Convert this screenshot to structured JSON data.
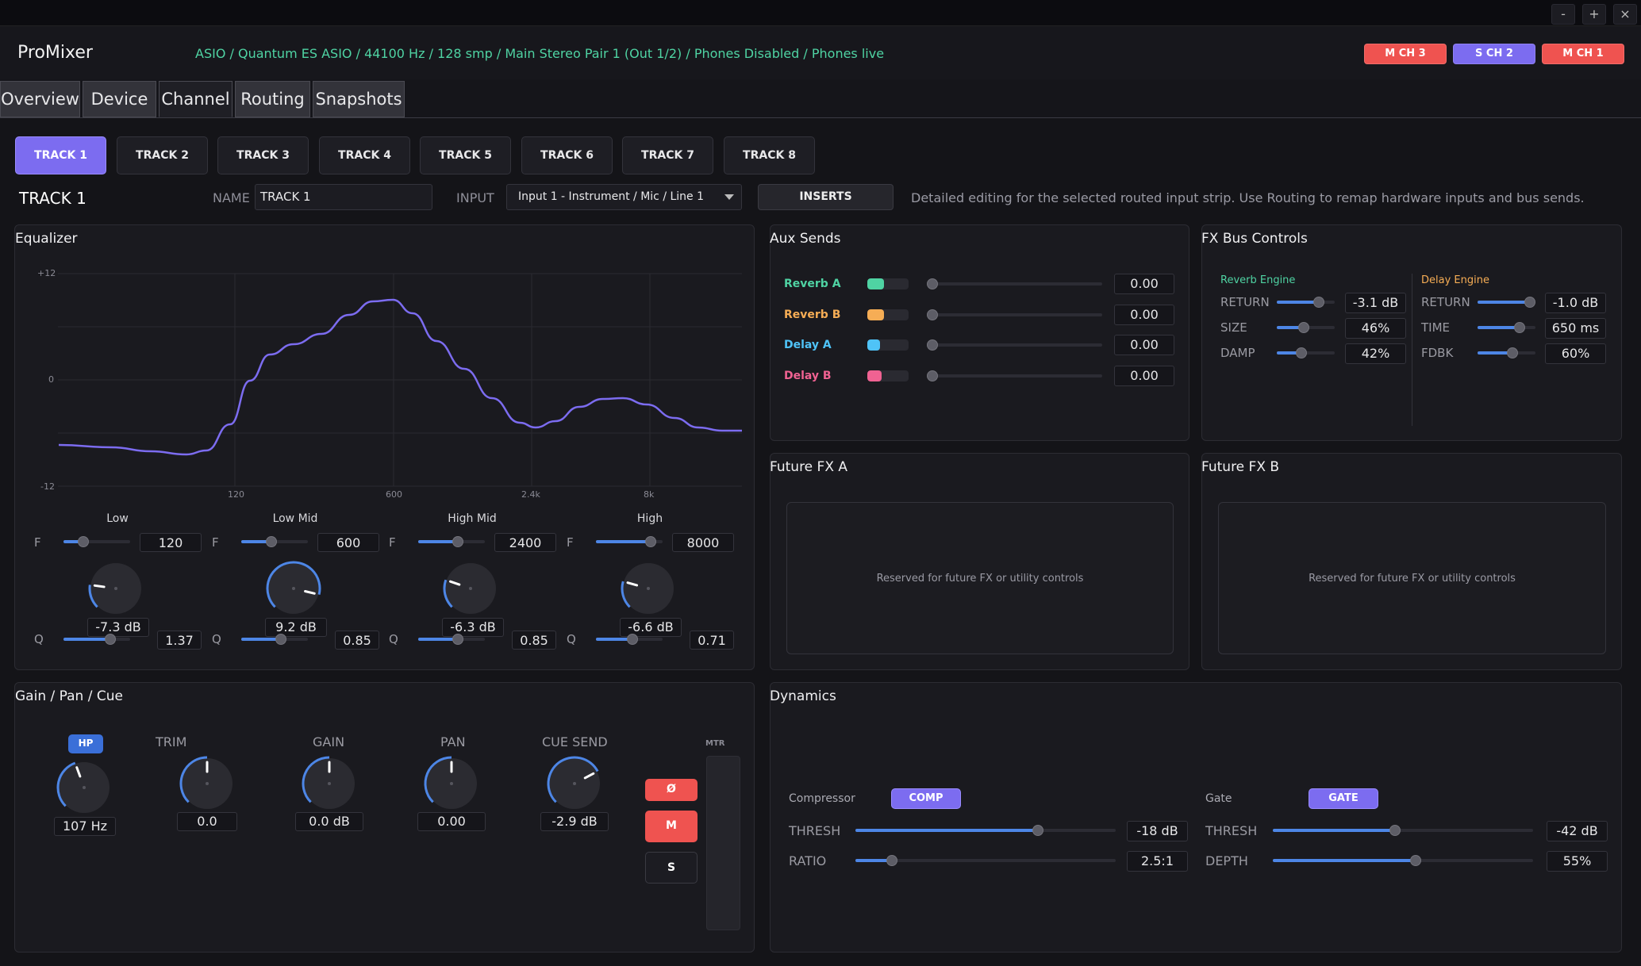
{
  "window": {
    "min": "-",
    "max": "+",
    "close": "×"
  },
  "header": {
    "app_title": "ProMixer",
    "status": "ASIO / Quantum ES ASIO / 44100 Hz / 128 smp / Main Stereo Pair 1 (Out 1/2) / Phones Disabled / Phones live",
    "chips": [
      {
        "label": "M CH 3",
        "color": "#ef5350"
      },
      {
        "label": "S CH 2",
        "color": "#7c6cf0"
      },
      {
        "label": "M CH 1",
        "color": "#ef5350"
      }
    ]
  },
  "tabs": [
    {
      "label": "Overview",
      "active": false
    },
    {
      "label": "Device",
      "active": false
    },
    {
      "label": "Channel",
      "active": true
    },
    {
      "label": "Routing",
      "active": false
    },
    {
      "label": "Snapshots",
      "active": false
    }
  ],
  "tracks": [
    "TRACK 1",
    "TRACK 2",
    "TRACK 3",
    "TRACK 4",
    "TRACK 5",
    "TRACK 6",
    "TRACK 7",
    "TRACK 8"
  ],
  "selected_track": "TRACK 1",
  "channel": {
    "name_label": "NAME",
    "name_value": "TRACK 1",
    "input_label": "INPUT",
    "input_value": "Input 1 - Instrument / Mic / Line 1",
    "inserts_label": "INSERTS",
    "help": "Detailed editing for the selected routed input strip. Use Routing to remap hardware inputs and bus sends."
  },
  "equalizer": {
    "title": "Equalizer",
    "y_labels": [
      "+12",
      "0",
      "-12"
    ],
    "x_labels": [
      "120",
      "600",
      "2.4k",
      "8k"
    ],
    "curve_color": "#7c6cf0",
    "bands": [
      {
        "name": "Low",
        "f_label": "F",
        "freq": "120",
        "freq_pos": 0.3,
        "gain": "-7.3 dB",
        "gain_value": -7.3,
        "q_label": "Q",
        "q": "1.37",
        "q_pos": 0.7
      },
      {
        "name": "Low Mid",
        "f_label": "F",
        "freq": "600",
        "freq_pos": 0.45,
        "gain": "9.2 dB",
        "gain_value": 9.2,
        "q_label": "Q",
        "q": "0.85",
        "q_pos": 0.6
      },
      {
        "name": "High Mid",
        "f_label": "F",
        "freq": "2400",
        "freq_pos": 0.6,
        "gain": "-6.3 dB",
        "gain_value": -6.3,
        "q_label": "Q",
        "q": "0.85",
        "q_pos": 0.6
      },
      {
        "name": "High",
        "f_label": "F",
        "freq": "8000",
        "freq_pos": 0.82,
        "gain": "-6.6 dB",
        "gain_value": -6.6,
        "q_label": "Q",
        "q": "0.71",
        "q_pos": 0.55
      }
    ]
  },
  "aux_sends": {
    "title": "Aux Sends",
    "sends": [
      {
        "name": "Reverb A",
        "color": "#4fd3a3",
        "value": "0.00",
        "meter": 0.4
      },
      {
        "name": "Reverb B",
        "color": "#f6ad55",
        "value": "0.00",
        "meter": 0.4
      },
      {
        "name": "Delay A",
        "color": "#4fc3f7",
        "value": "0.00",
        "meter": 0.3
      },
      {
        "name": "Delay B",
        "color": "#f06292",
        "value": "0.00",
        "meter": 0.35
      }
    ]
  },
  "fx_bus": {
    "title": "FX Bus Controls",
    "reverb": {
      "title": "Reverb Engine",
      "color": "#4fd3a3",
      "params": [
        {
          "label": "RETURN",
          "value": "-3.1 dB",
          "pos": 0.72
        },
        {
          "label": "SIZE",
          "value": "46%",
          "pos": 0.46
        },
        {
          "label": "DAMP",
          "value": "42%",
          "pos": 0.42
        }
      ]
    },
    "delay": {
      "title": "Delay Engine",
      "color": "#f6ad55",
      "params": [
        {
          "label": "RETURN",
          "value": "-1.0 dB",
          "pos": 0.9
        },
        {
          "label": "TIME",
          "value": "650 ms",
          "pos": 0.72
        },
        {
          "label": "FDBK",
          "value": "60%",
          "pos": 0.6
        }
      ]
    }
  },
  "future_fx_a": {
    "title": "Future FX A",
    "text": "Reserved for future FX or utility controls"
  },
  "future_fx_b": {
    "title": "Future FX B",
    "text": "Reserved for future FX or utility controls"
  },
  "gain_pan": {
    "title": "Gain / Pan / Cue",
    "hp_label": "HP",
    "hp_value": "107 Hz",
    "trim_label": "TRIM",
    "trim_value": "0.0",
    "gain_label": "GAIN",
    "gain_value": "0.0 dB",
    "pan_label": "PAN",
    "pan_value": "0.00",
    "cue_label": "CUE SEND",
    "cue_value": "-2.9 dB",
    "phase_label": "Ø",
    "mute_label": "M",
    "solo_label": "S",
    "meter_label": "MTR"
  },
  "dynamics": {
    "title": "Dynamics",
    "compressor": {
      "label": "Compressor",
      "button": "COMP",
      "params": [
        {
          "label": "THRESH",
          "value": "-18 dB",
          "pos": 0.7
        },
        {
          "label": "RATIO",
          "value": "2.5:1",
          "pos": 0.14
        }
      ]
    },
    "gate": {
      "label": "Gate",
      "button": "GATE",
      "params": [
        {
          "label": "THRESH",
          "value": "-42 dB",
          "pos": 0.47
        },
        {
          "label": "DEPTH",
          "value": "55%",
          "pos": 0.55
        }
      ]
    }
  }
}
